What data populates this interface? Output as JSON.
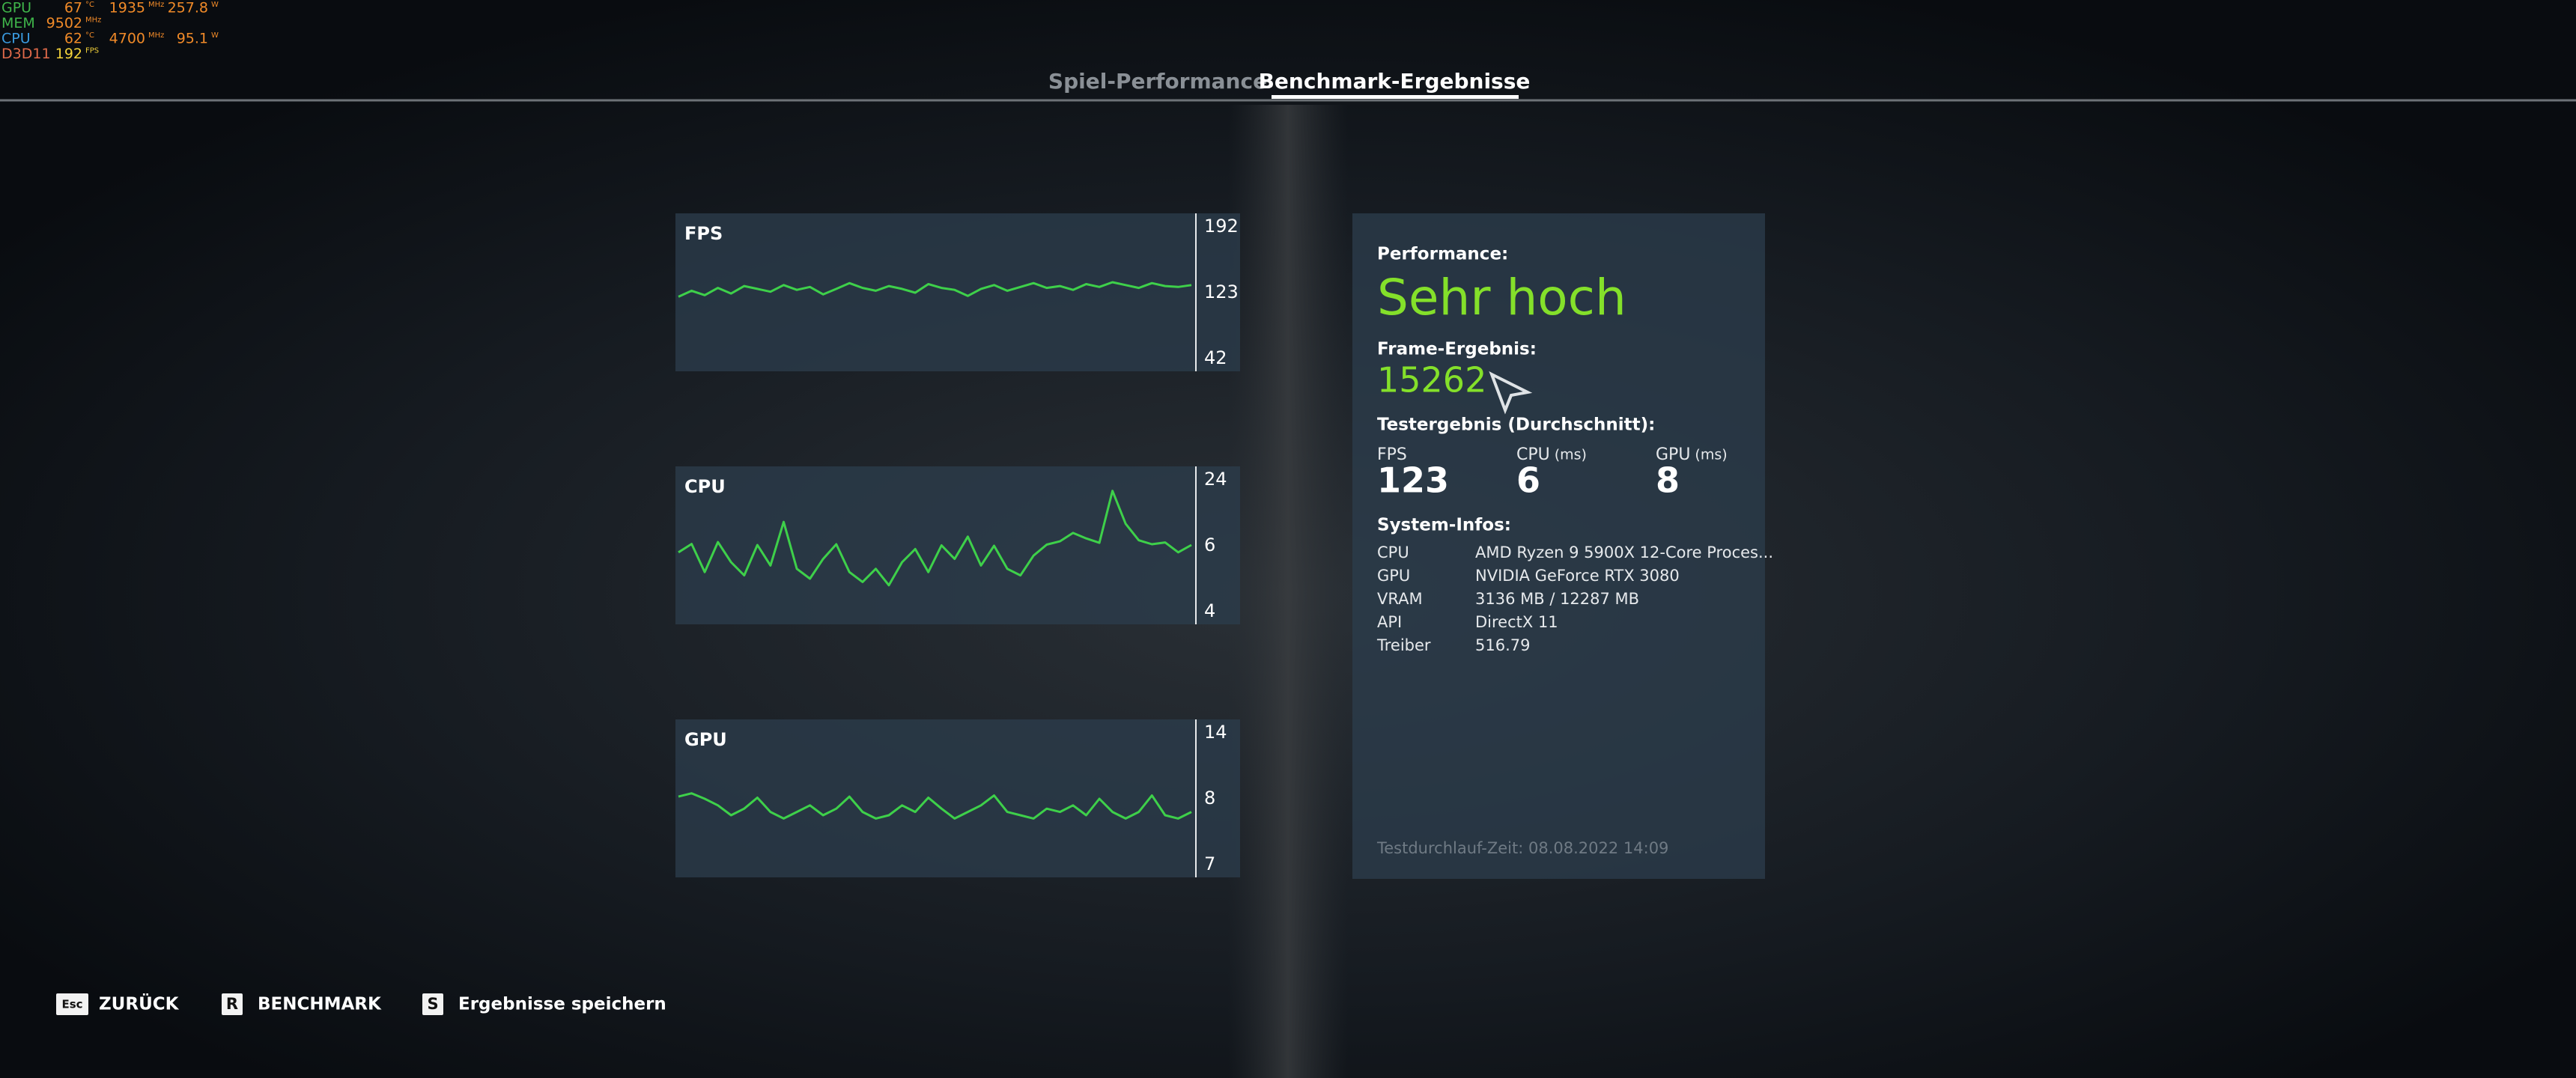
{
  "overlay": {
    "rows": [
      {
        "label": "GPU",
        "a": "67",
        "a_unit": "°C",
        "b": "1935",
        "b_unit": "MHz",
        "c": "257.8",
        "c_unit": "W"
      },
      {
        "label": "MEM",
        "a": "9502",
        "a_unit": "MHz"
      },
      {
        "label": "CPU",
        "a": "62",
        "a_unit": "°C",
        "b": "4700",
        "b_unit": "MHz",
        "c": "95.1",
        "c_unit": "W"
      },
      {
        "label": "D3D11",
        "a": "192",
        "a_unit": "FPS"
      }
    ]
  },
  "tabs": [
    "Spiel-Performance",
    "Benchmark-Ergebnisse"
  ],
  "graphs": [
    {
      "title": "FPS",
      "max": 192,
      "avg": 123,
      "min": 42,
      "values": [
        118,
        125,
        120,
        128,
        122,
        130,
        127,
        124,
        131,
        126,
        129,
        121,
        127,
        133,
        128,
        125,
        130,
        127,
        123,
        132,
        128,
        126,
        119,
        127,
        131,
        125,
        129,
        133,
        128,
        130,
        126,
        132,
        129,
        134,
        131,
        128,
        133,
        130,
        129,
        131
      ]
    },
    {
      "title": "CPU",
      "max": 24,
      "avg": 6,
      "min": 4,
      "values": [
        5.8,
        6.5,
        5.2,
        7,
        5.5,
        5.1,
        6.2,
        5.4,
        12.5,
        5.3,
        5,
        5.6,
        6.4,
        5.2,
        4.9,
        5.3,
        4.8,
        5.5,
        5.9,
        5.2,
        6.1,
        5.6,
        8.5,
        5.4,
        6,
        5.3,
        5.1,
        5.7,
        6.3,
        7.2,
        9.5,
        8,
        6.8,
        21,
        12,
        7.5,
        6.4,
        6.9,
        5.8,
        6.2
      ]
    },
    {
      "title": "GPU",
      "max": 14,
      "avg": 8,
      "min": 7,
      "values": [
        8.2,
        8.5,
        8.0,
        7.9,
        7.75,
        7.85,
        8.1,
        7.8,
        7.7,
        7.8,
        7.9,
        7.75,
        7.85,
        8.2,
        7.8,
        7.7,
        7.75,
        7.9,
        7.8,
        8.1,
        7.85,
        7.7,
        7.8,
        7.9,
        8.3,
        7.8,
        7.75,
        7.7,
        7.85,
        7.8,
        7.9,
        7.75,
        8.0,
        7.8,
        7.7,
        7.8,
        8.3,
        7.75,
        7.7,
        7.8
      ]
    }
  ],
  "results": {
    "performance_label": "Performance:",
    "performance": "Sehr hoch",
    "frame_label": "Frame-Ergebnis:",
    "frame_score": 15262,
    "test_label": "Testergebnis (Durchschnitt):",
    "averages": [
      {
        "name": "FPS",
        "value": 123
      },
      {
        "name": "CPU",
        "unit": "(ms)",
        "value": 6
      },
      {
        "name": "GPU",
        "unit": "(ms)",
        "value": 8
      }
    ],
    "system_label": "System-Infos:",
    "system": [
      [
        "CPU",
        "AMD Ryzen 9 5900X 12-Core Proces..."
      ],
      [
        "GPU",
        "NVIDIA GeForce RTX 3080"
      ],
      [
        "VRAM",
        "3136 MB / 12287 MB"
      ],
      [
        "API",
        "DirectX 11"
      ],
      [
        "Treiber",
        "516.79"
      ]
    ],
    "timestamp": "Testdurchlauf-Zeit: 08.08.2022 14:09"
  },
  "footer": [
    {
      "key": "Esc",
      "label": "ZURÜCK"
    },
    {
      "key": "R",
      "label": "BENCHMARK"
    },
    {
      "key": "S",
      "label": "Ergebnisse speichern"
    }
  ]
}
